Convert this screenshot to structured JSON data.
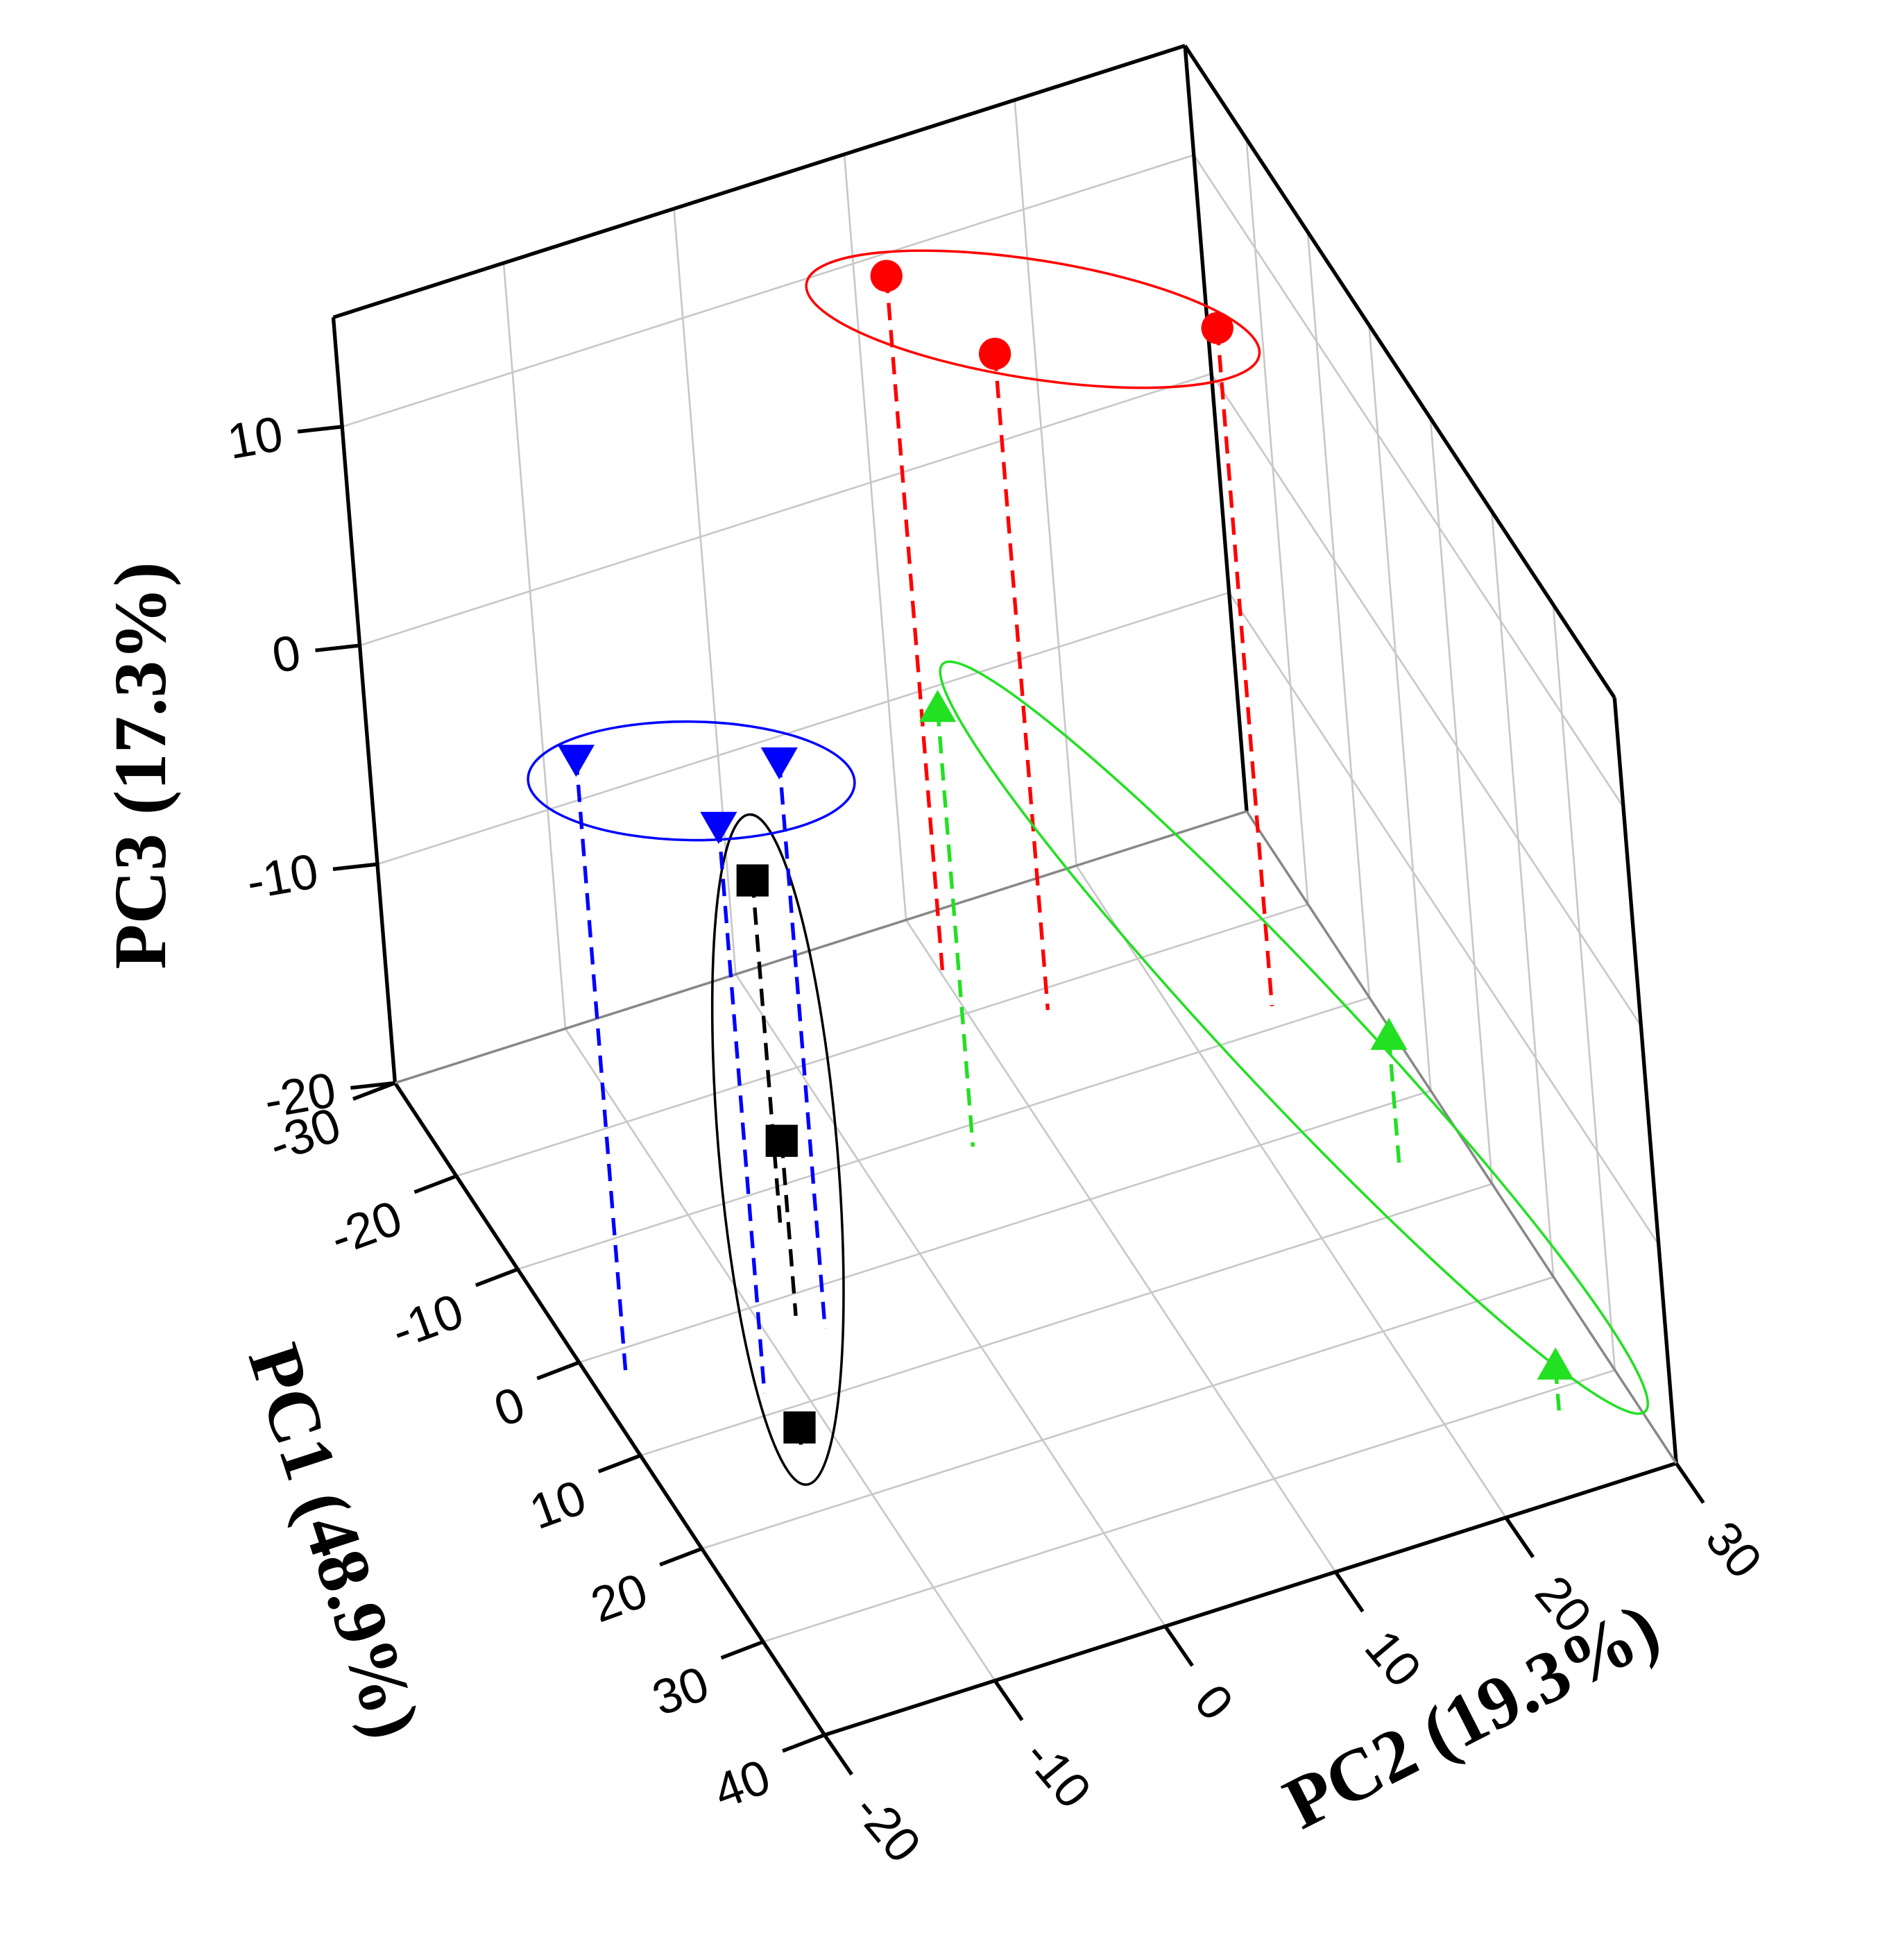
{
  "chart_data": {
    "type": "scatter3d",
    "x_label": "PC1 (48.9%)",
    "y_label": "PC2 (19.3%)",
    "z_label": "PC3 (17.3%)",
    "xlim": [
      -30,
      40
    ],
    "xticks": [
      -30,
      -20,
      -10,
      0,
      10,
      20,
      30,
      40
    ],
    "ylim": [
      -20,
      30
    ],
    "yticks": [
      -20,
      -10,
      0,
      10,
      20,
      30
    ],
    "zlim": [
      -20,
      15
    ],
    "zticks": [
      -20,
      -10,
      0,
      10
    ],
    "grid": true,
    "drop_lines": true,
    "series": [
      {
        "color": "#000000",
        "marker": "square",
        "x": [
          -6,
          2,
          14
        ],
        "y": [
          -6,
          -8,
          -12
        ],
        "z": [
          -4,
          -12,
          -19
        ]
      },
      {
        "color": "#ff0000",
        "marker": "circle",
        "x": [
          -24,
          -18,
          -12
        ],
        "y": [
          10,
          14,
          25
        ],
        "z": [
          12,
          10,
          11
        ]
      },
      {
        "color": "#0000ff",
        "marker": "triangle-down",
        "x": [
          2,
          8,
          4
        ],
        "y": [
          -18,
          -12,
          -7
        ],
        "z": [
          8,
          6,
          6
        ]
      },
      {
        "color": "#22e022",
        "marker": "triangle-up",
        "x": [
          -8,
          6,
          32
        ],
        "y": [
          6,
          26,
          26
        ],
        "z": [
          0,
          -14,
          -18
        ]
      }
    ]
  }
}
